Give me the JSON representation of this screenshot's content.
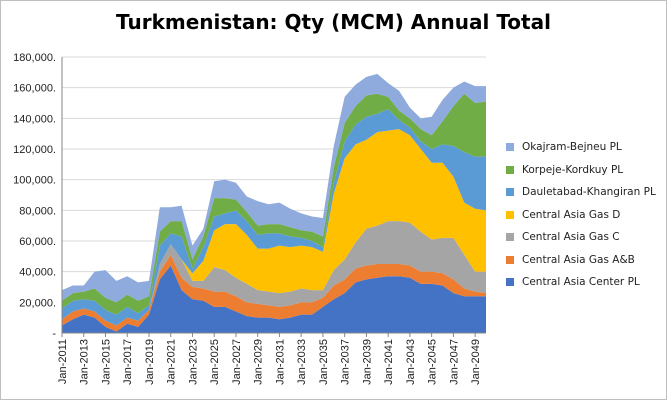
{
  "chart_data": {
    "type": "area",
    "title": "Turkmenistan: Qty (MCM) Annual Total",
    "xlabel": "",
    "ylabel": "",
    "ylim": [
      0,
      180000
    ],
    "yticks": [
      "-",
      "20,000.",
      "40,000.",
      "60,000.",
      "80,000.",
      "100,000.",
      "120,000.",
      "140,000.",
      "160,000.",
      "180,000."
    ],
    "xticks": [
      "Jan-2011",
      "Jan-2013",
      "Jan-2015",
      "Jan-2017",
      "Jan-2019",
      "Jan-2021",
      "Jan-2023",
      "Jan-2025",
      "Jan-2027",
      "Jan-2029",
      "Jan-2031",
      "Jan-2033",
      "Jan-2035",
      "Jan-2037",
      "Jan-2039",
      "Jan-2041",
      "Jan-2043",
      "Jan-2045",
      "Jan-2047",
      "Jan-2049"
    ],
    "x": [
      2011,
      2012,
      2013,
      2014,
      2015,
      2016,
      2017,
      2018,
      2019,
      2020,
      2021,
      2022,
      2023,
      2024,
      2025,
      2026,
      2027,
      2028,
      2029,
      2030,
      2031,
      2032,
      2033,
      2034,
      2035,
      2036,
      2037,
      2038,
      2039,
      2040,
      2041,
      2042,
      2043,
      2044,
      2045,
      2046,
      2047,
      2048,
      2049,
      2050
    ],
    "grid": true,
    "stacked": true,
    "legend_position": "right",
    "series": [
      {
        "name": "Central Asia Center PL",
        "color": "#4472c4",
        "values": [
          5000,
          9000,
          12000,
          10000,
          4000,
          1000,
          6000,
          4000,
          12000,
          35000,
          44000,
          28000,
          22000,
          21000,
          17000,
          17000,
          14000,
          11000,
          10000,
          10000,
          9000,
          10000,
          12000,
          12000,
          17000,
          22000,
          26000,
          33000,
          35000,
          36000,
          37000,
          37000,
          36000,
          32000,
          32000,
          31000,
          26000,
          24000,
          24000,
          24000
        ]
      },
      {
        "name": "Central Asia Gas A&B",
        "color": "#ed7d31",
        "values": [
          4000,
          5000,
          4000,
          4000,
          4000,
          4000,
          4000,
          4000,
          3000,
          5000,
          7000,
          8000,
          8000,
          8000,
          10000,
          10000,
          10000,
          9000,
          9000,
          8000,
          8000,
          8000,
          8000,
          8000,
          6000,
          9000,
          9000,
          9000,
          9000,
          9000,
          8000,
          8000,
          8000,
          8000,
          8000,
          8000,
          9000,
          5000,
          3000,
          2000
        ]
      },
      {
        "name": "Central Asia Gas C",
        "color": "#a5a5a5",
        "values": [
          0,
          0,
          0,
          0,
          0,
          0,
          0,
          0,
          0,
          5000,
          7000,
          12000,
          4000,
          5000,
          16000,
          14000,
          12000,
          12000,
          9000,
          9000,
          9000,
          9000,
          9000,
          8000,
          5000,
          10000,
          13000,
          17000,
          24000,
          25000,
          28000,
          28000,
          28000,
          26000,
          21000,
          23000,
          27000,
          22000,
          13000,
          14000
        ]
      },
      {
        "name": "Central Asia Gas D",
        "color": "#ffc000",
        "values": [
          0,
          0,
          0,
          0,
          0,
          0,
          0,
          0,
          0,
          0,
          0,
          0,
          5000,
          13000,
          24000,
          30000,
          35000,
          32000,
          27000,
          28000,
          31000,
          29000,
          28000,
          28000,
          25000,
          50000,
          66000,
          64000,
          58000,
          61000,
          59000,
          60000,
          57000,
          54000,
          50000,
          49000,
          40000,
          34000,
          41000,
          40000
        ]
      },
      {
        "name": "Dauletabad-Khangiran PL",
        "color": "#5b9bd5",
        "values": [
          7000,
          7000,
          6000,
          7000,
          7000,
          7000,
          7000,
          5000,
          3000,
          12000,
          7000,
          15000,
          3000,
          9000,
          9000,
          7000,
          9000,
          9000,
          9000,
          10000,
          8000,
          7000,
          5000,
          4000,
          3000,
          7000,
          11000,
          13000,
          15000,
          12000,
          14000,
          6000,
          5000,
          5000,
          9000,
          12000,
          20000,
          33000,
          34000,
          35000
        ]
      },
      {
        "name": "Korpeje-Kordkuy PL",
        "color": "#70ad47",
        "values": [
          5000,
          5000,
          5000,
          8000,
          8000,
          8000,
          8000,
          8000,
          6000,
          9000,
          8000,
          10000,
          6000,
          7000,
          12000,
          10000,
          7000,
          6000,
          6000,
          6000,
          6000,
          6000,
          5000,
          6000,
          7000,
          10000,
          12000,
          12000,
          14000,
          13000,
          8000,
          6000,
          6000,
          8000,
          9000,
          15000,
          26000,
          38000,
          35000,
          36000
        ]
      },
      {
        "name": "Okajram-Bejneu PL",
        "color": "#8faadc",
        "values": [
          7000,
          5000,
          4000,
          11000,
          18000,
          14000,
          12000,
          12000,
          10000,
          16000,
          9000,
          10000,
          9000,
          5000,
          11000,
          12000,
          11000,
          10000,
          16000,
          13000,
          14000,
          12000,
          11000,
          10000,
          12000,
          14000,
          17000,
          14000,
          12000,
          13000,
          9000,
          13000,
          7000,
          7000,
          12000,
          14000,
          12000,
          8000,
          11000,
          10000
        ]
      }
    ]
  }
}
